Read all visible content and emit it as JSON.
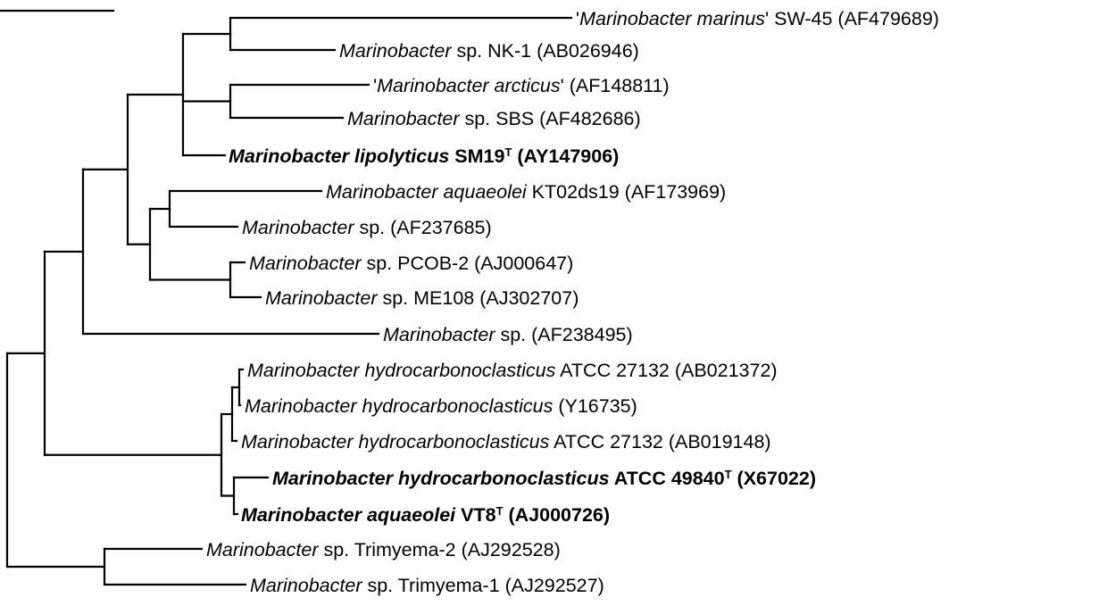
{
  "scale_bar": {
    "label": ""
  },
  "taxa": [
    {
      "id": "t1",
      "bold": false,
      "parts": [
        [
          "q1",
          "'"
        ],
        [
          "genus",
          "Marinobacter marinus"
        ],
        [
          "q2",
          "'"
        ],
        [
          "rest",
          " SW-45 (AF479689)"
        ]
      ]
    },
    {
      "id": "t2",
      "bold": false,
      "parts": [
        [
          "genus",
          "Marinobacter"
        ],
        [
          "rest",
          " sp. NK-1 (AB026946)"
        ]
      ]
    },
    {
      "id": "t3",
      "bold": false,
      "parts": [
        [
          "q1",
          "'"
        ],
        [
          "genus",
          "Marinobacter arcticus"
        ],
        [
          "q2",
          "'"
        ],
        [
          "rest",
          " (AF148811)"
        ]
      ]
    },
    {
      "id": "t4",
      "bold": false,
      "parts": [
        [
          "genus",
          "Marinobacter"
        ],
        [
          "rest",
          " sp. SBS (AF482686)"
        ]
      ]
    },
    {
      "id": "t5",
      "bold": true,
      "parts": [
        [
          "genus",
          "Marinobacter lipolyticus"
        ],
        [
          "rest",
          " SM19"
        ],
        [
          "sup",
          "T"
        ],
        [
          "rest2",
          " (AY147906)"
        ]
      ]
    },
    {
      "id": "t6",
      "bold": false,
      "parts": [
        [
          "genus",
          "Marinobacter aquaeolei"
        ],
        [
          "rest",
          " KT02ds19 (AF173969)"
        ]
      ]
    },
    {
      "id": "t7",
      "bold": false,
      "parts": [
        [
          "genus",
          "Marinobacter"
        ],
        [
          "rest",
          " sp. (AF237685)"
        ]
      ]
    },
    {
      "id": "t8",
      "bold": false,
      "parts": [
        [
          "genus",
          "Marinobacter"
        ],
        [
          "rest",
          " sp. PCOB-2 (AJ000647)"
        ]
      ]
    },
    {
      "id": "t9",
      "bold": false,
      "parts": [
        [
          "genus",
          "Marinobacter"
        ],
        [
          "rest",
          " sp. ME108 (AJ302707)"
        ]
      ]
    },
    {
      "id": "t10",
      "bold": false,
      "parts": [
        [
          "genus",
          "Marinobacter"
        ],
        [
          "rest",
          " sp. (AF238495)"
        ]
      ]
    },
    {
      "id": "t11",
      "bold": false,
      "parts": [
        [
          "genus",
          "Marinobacter hydrocarbonoclasticus"
        ],
        [
          "rest",
          " ATCC 27132 (AB021372)"
        ]
      ]
    },
    {
      "id": "t12",
      "bold": false,
      "parts": [
        [
          "genus",
          "Marinobacter hydrocarbonoclasticus"
        ],
        [
          "rest",
          " (Y16735)"
        ]
      ]
    },
    {
      "id": "t13",
      "bold": false,
      "parts": [
        [
          "genus",
          "Marinobacter hydrocarbonoclasticus"
        ],
        [
          "rest",
          " ATCC 27132 (AB019148)"
        ]
      ]
    },
    {
      "id": "t14",
      "bold": true,
      "parts": [
        [
          "genus",
          "Marinobacter hydrocarbonoclasticus"
        ],
        [
          "rest",
          " ATCC 49840"
        ],
        [
          "sup",
          "T"
        ],
        [
          "rest2",
          " (X67022)"
        ]
      ]
    },
    {
      "id": "t15",
      "bold": true,
      "parts": [
        [
          "genus",
          "Marinobacter aquaeolei"
        ],
        [
          "rest",
          " VT8"
        ],
        [
          "sup",
          "T"
        ],
        [
          "rest2",
          " (AJ000726)"
        ]
      ]
    },
    {
      "id": "t16",
      "bold": false,
      "parts": [
        [
          "genus",
          "Marinobacter"
        ],
        [
          "rest",
          " sp. Trimyema-2 (AJ292528)"
        ]
      ]
    },
    {
      "id": "t17",
      "bold": false,
      "parts": [
        [
          "genus",
          "Marinobacter"
        ],
        [
          "rest",
          " sp. Trimyema-1 (AJ292527)"
        ]
      ]
    }
  ]
}
